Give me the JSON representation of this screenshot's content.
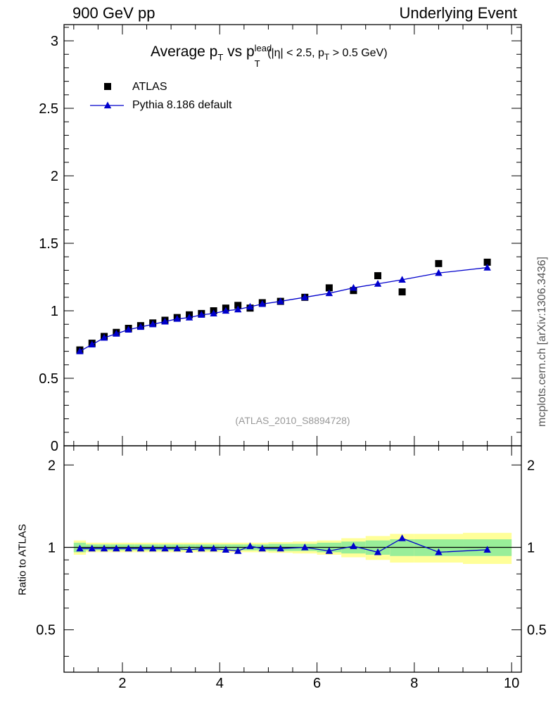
{
  "header": {
    "left": "900 GeV pp",
    "right": "Underlying Event"
  },
  "title": {
    "part1": "Average p",
    "part1_sub": "T",
    "part2": " vs p",
    "part2_sup": "lead",
    "part2_sub": "T",
    "cuts_a": " (|η| < 2.5, p",
    "cuts_sub": "T",
    "cuts_b": " > 0.5 GeV)"
  },
  "side_note": "mcplots.cern.ch [arXiv:1306.3436]",
  "analysis_id": "(ATLAS_2010_S8894728)",
  "ratio_ylabel": "Ratio to ATLAS",
  "chart_data": [
    {
      "type": "scatter",
      "panel": "main",
      "xlim": [
        0.8,
        10.2
      ],
      "ylim": [
        0,
        3.12
      ],
      "yticks": [
        0,
        0.5,
        1,
        1.5,
        2,
        2.5,
        3
      ],
      "ytick_labels": [
        "0",
        "0.5",
        "1",
        "1.5",
        "2",
        "2.5",
        "3"
      ],
      "legend_position": "top-left",
      "series": [
        {
          "name": "ATLAS",
          "marker": "square",
          "color": "#000000",
          "x": [
            1.125,
            1.375,
            1.625,
            1.875,
            2.125,
            2.375,
            2.625,
            2.875,
            3.125,
            3.375,
            3.625,
            3.875,
            4.125,
            4.375,
            4.625,
            4.875,
            5.25,
            5.75,
            6.25,
            6.75,
            7.25,
            7.75,
            8.5,
            9.5
          ],
          "y": [
            0.71,
            0.76,
            0.81,
            0.84,
            0.87,
            0.89,
            0.91,
            0.93,
            0.95,
            0.97,
            0.98,
            1.0,
            1.02,
            1.04,
            1.02,
            1.06,
            1.07,
            1.1,
            1.17,
            1.15,
            1.26,
            1.14,
            1.35,
            1.36
          ]
        },
        {
          "name": "Pythia 8.186 default",
          "marker": "triangle",
          "color": "#0000cc",
          "x": [
            1.125,
            1.375,
            1.625,
            1.875,
            2.125,
            2.375,
            2.625,
            2.875,
            3.125,
            3.375,
            3.625,
            3.875,
            4.125,
            4.375,
            4.625,
            4.875,
            5.25,
            5.75,
            6.25,
            6.75,
            7.25,
            7.75,
            8.5,
            9.5
          ],
          "y": [
            0.7,
            0.75,
            0.8,
            0.83,
            0.86,
            0.88,
            0.9,
            0.92,
            0.94,
            0.95,
            0.97,
            0.98,
            1.0,
            1.01,
            1.03,
            1.05,
            1.07,
            1.1,
            1.13,
            1.17,
            1.2,
            1.23,
            1.28,
            1.32
          ]
        }
      ]
    },
    {
      "type": "line",
      "panel": "ratio",
      "xlim": [
        0.8,
        10.2
      ],
      "ylim": [
        0.35,
        2.35
      ],
      "yticks": [
        0.5,
        1,
        2
      ],
      "ytick_labels": [
        "0.5",
        "1",
        "2"
      ],
      "xticks": [
        2,
        4,
        6,
        8,
        10
      ],
      "xtick_labels": [
        "2",
        "4",
        "6",
        "8",
        "10"
      ],
      "ylabel": "Ratio to ATLAS",
      "reference_line": 1,
      "bands": {
        "edges": [
          1.0,
          1.25,
          1.5,
          1.75,
          2.0,
          2.25,
          2.5,
          2.75,
          3.0,
          3.25,
          3.5,
          3.75,
          4.0,
          4.25,
          4.5,
          4.75,
          5.0,
          5.5,
          6.0,
          6.5,
          7.0,
          7.5,
          8.0,
          9.0,
          10.0
        ],
        "stat_halfwidth": [
          0.04,
          0.025,
          0.025,
          0.025,
          0.025,
          0.025,
          0.025,
          0.025,
          0.025,
          0.025,
          0.025,
          0.025,
          0.025,
          0.025,
          0.025,
          0.025,
          0.03,
          0.03,
          0.04,
          0.05,
          0.06,
          0.07,
          0.07,
          0.07
        ],
        "total_halfwidth": [
          0.06,
          0.04,
          0.04,
          0.04,
          0.04,
          0.04,
          0.04,
          0.04,
          0.04,
          0.04,
          0.04,
          0.04,
          0.04,
          0.04,
          0.04,
          0.04,
          0.045,
          0.05,
          0.06,
          0.08,
          0.1,
          0.12,
          0.12,
          0.13
        ],
        "stat_color": "#99ee99",
        "total_color": "#ffff99"
      },
      "series": [
        {
          "name": "Pythia 8.186 default",
          "marker": "triangle",
          "color": "#0000cc",
          "x": [
            1.125,
            1.375,
            1.625,
            1.875,
            2.125,
            2.375,
            2.625,
            2.875,
            3.125,
            3.375,
            3.625,
            3.875,
            4.125,
            4.375,
            4.625,
            4.875,
            5.25,
            5.75,
            6.25,
            6.75,
            7.25,
            7.75,
            8.5,
            9.5
          ],
          "y": [
            0.99,
            0.99,
            0.99,
            0.99,
            0.99,
            0.99,
            0.99,
            0.99,
            0.99,
            0.98,
            0.99,
            0.99,
            0.98,
            0.97,
            1.01,
            0.99,
            0.99,
            1.0,
            0.97,
            1.01,
            0.96,
            1.08,
            0.96,
            0.98
          ]
        }
      ]
    }
  ]
}
